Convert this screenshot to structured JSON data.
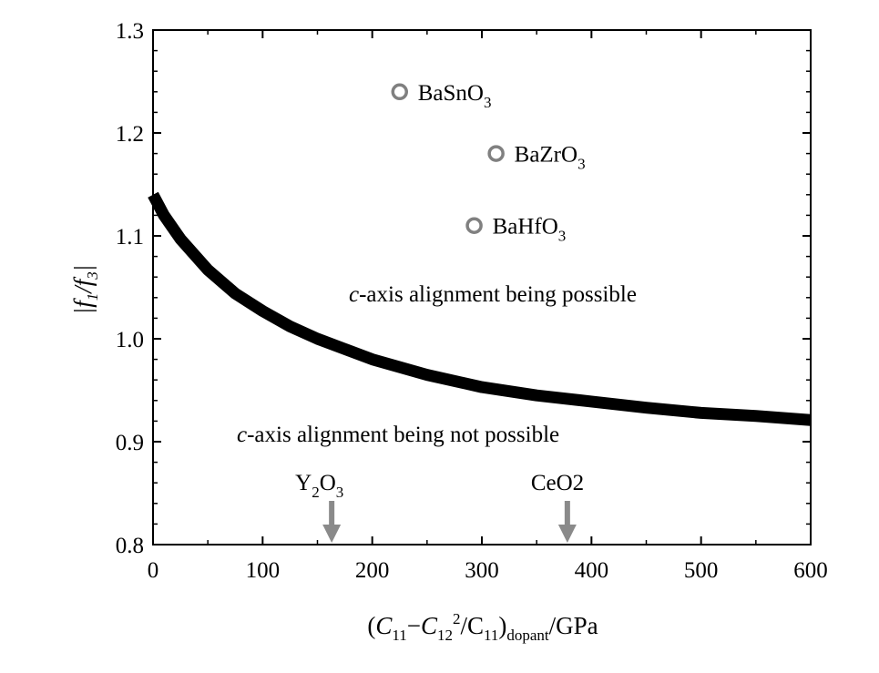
{
  "chart_data": {
    "type": "line",
    "xlim": [
      0,
      600
    ],
    "ylim": [
      0.8,
      1.3
    ],
    "x_ticks": [
      0,
      100,
      200,
      300,
      400,
      500,
      600
    ],
    "y_ticks": [
      0.8,
      0.9,
      1.0,
      1.1,
      1.2,
      1.3
    ],
    "x_tick_labels": [
      "0",
      "100",
      "200",
      "300",
      "400",
      "500",
      "600"
    ],
    "y_tick_labels": [
      "0.8",
      "0.9",
      "1.0",
      "1.1",
      "1.2",
      "1.3"
    ],
    "xlabel": "(C11−C122/C11)dopant/GPa",
    "ylabel": "|f1/f3|",
    "grid": false,
    "series": [
      {
        "style": "thick-black-curve",
        "x": [
          0,
          10,
          25,
          50,
          75,
          100,
          125,
          150,
          175,
          200,
          250,
          300,
          350,
          400,
          450,
          500,
          550,
          600
        ],
        "y": [
          1.14,
          1.12,
          1.097,
          1.067,
          1.044,
          1.027,
          1.012,
          1.0,
          0.99,
          0.98,
          0.965,
          0.953,
          0.945,
          0.939,
          0.933,
          0.928,
          0.925,
          0.921
        ]
      }
    ],
    "points": [
      {
        "label": "BaSnO3",
        "x": 225,
        "y": 1.24
      },
      {
        "label": "BaZrO3",
        "x": 313,
        "y": 1.18
      },
      {
        "label": "BaHfO3",
        "x": 293,
        "y": 1.11
      }
    ],
    "point_labels": [
      {
        "base": "BaSnO",
        "sub": "3"
      },
      {
        "base": "BaZrO",
        "sub": "3"
      },
      {
        "base": "BaHfO",
        "sub": "3"
      }
    ],
    "arrows": [
      {
        "label": "Y2O3",
        "x": 163
      },
      {
        "label": "CeO2",
        "x": 378
      }
    ],
    "region_labels": {
      "above": {
        "italic": "c",
        "text": "-axis alignment being possible"
      },
      "below": {
        "italic": "c",
        "text": "-axis alignment being not possible"
      }
    },
    "colors": {
      "curve": "#000000",
      "marker": "#808080",
      "arrow": "#8a8a8a",
      "axis": "#000000"
    }
  }
}
